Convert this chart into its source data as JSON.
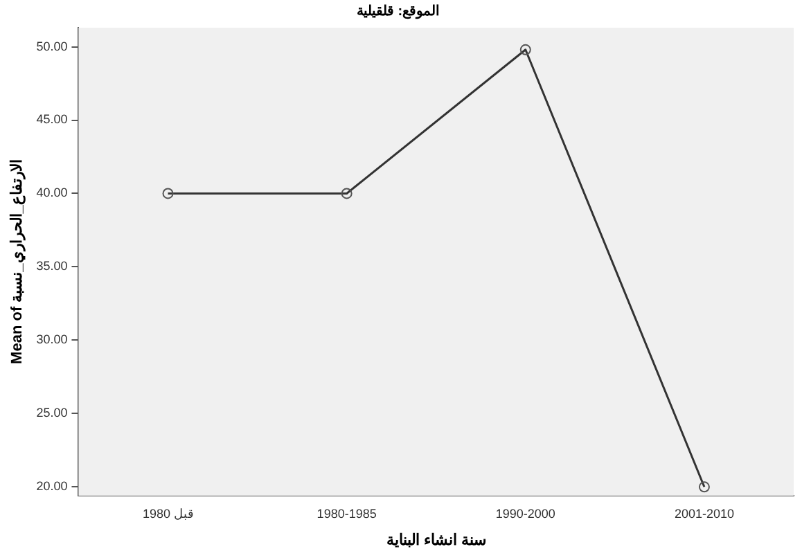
{
  "chart_data": {
    "type": "line",
    "title": "الموقع: قلقيلية",
    "xlabel": "سنة انشاء البناية",
    "ylabel": "Mean of الارتفاع_الحراري_نسبة",
    "categories": [
      "قبل 1980",
      "1980-1985",
      "1990-2000",
      "2001-2010"
    ],
    "series": [
      {
        "color": "#333333",
        "values": [
          40,
          40,
          49.8,
          20
        ]
      }
    ],
    "ylim": [
      19.4,
      51.3
    ],
    "yticks": [
      {
        "value": 20,
        "label": "20.00"
      },
      {
        "value": 25,
        "label": "25.00"
      },
      {
        "value": 30,
        "label": "30.00"
      },
      {
        "value": 35,
        "label": "35.00"
      },
      {
        "value": 40,
        "label": "40.00"
      },
      {
        "value": 45,
        "label": "45.00"
      },
      {
        "value": 50,
        "label": "50.00"
      }
    ],
    "grid": false,
    "legend": false,
    "marker": "circle",
    "line_style": "solid"
  }
}
